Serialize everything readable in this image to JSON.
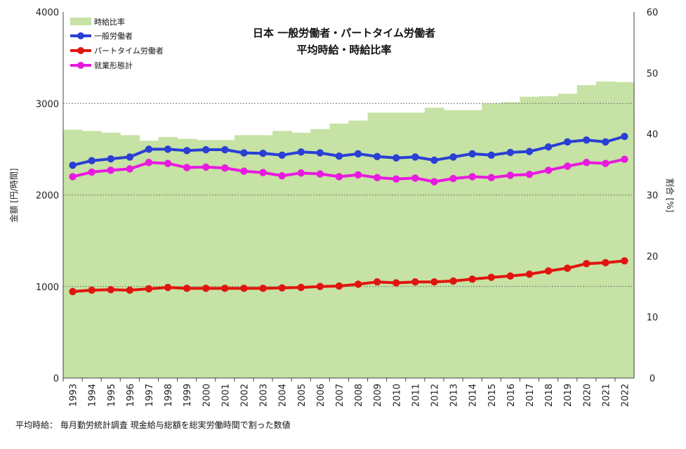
{
  "chart_data": {
    "type": "line",
    "title": "日本 一般労働者・パートタイム労働者",
    "subtitle": "平均時給・時給比率",
    "ylabel": "金額 [円/時間]",
    "y2label": "割合 [%]",
    "ylim": [
      0,
      4000
    ],
    "y2lim": [
      0,
      60
    ],
    "yticks": [
      "0",
      "1000",
      "2000",
      "3000",
      "4000"
    ],
    "y2ticks": [
      "0",
      "10",
      "20",
      "30",
      "40",
      "50",
      "60"
    ],
    "grid": "horizontal",
    "legend_position": "top-left",
    "categories": [
      "1993",
      "1994",
      "1995",
      "1996",
      "1997",
      "1998",
      "1999",
      "2000",
      "2001",
      "2002",
      "2003",
      "2004",
      "2005",
      "2006",
      "2007",
      "2008",
      "2009",
      "2010",
      "2011",
      "2012",
      "2013",
      "2014",
      "2015",
      "2016",
      "2017",
      "2018",
      "2019",
      "2020",
      "2021",
      "2022"
    ],
    "area": {
      "name": "時給比率",
      "axis": "right",
      "color": "#c6e2a4",
      "values": [
        40.7,
        40.5,
        40.2,
        39.8,
        38.9,
        39.5,
        39.2,
        39.0,
        39.0,
        39.8,
        39.8,
        40.5,
        40.2,
        40.8,
        41.7,
        42.2,
        43.5,
        43.5,
        43.5,
        44.3,
        43.9,
        43.9,
        45.0,
        45.2,
        46.1,
        46.2,
        46.6,
        48.0,
        48.6,
        48.5
      ]
    },
    "series": [
      {
        "name": "一般労働者",
        "axis": "left",
        "color": "#2a3fd4",
        "values": [
          2325,
          2375,
          2395,
          2415,
          2500,
          2500,
          2485,
          2495,
          2495,
          2460,
          2455,
          2435,
          2470,
          2460,
          2425,
          2450,
          2420,
          2405,
          2415,
          2380,
          2415,
          2450,
          2435,
          2465,
          2475,
          2525,
          2580,
          2600,
          2580,
          2640
        ]
      },
      {
        "name": "パートタイム労働者",
        "axis": "left",
        "color": "#e0150f",
        "values": [
          945,
          960,
          965,
          960,
          975,
          990,
          980,
          980,
          980,
          980,
          980,
          985,
          990,
          1000,
          1005,
          1025,
          1050,
          1040,
          1050,
          1050,
          1060,
          1080,
          1100,
          1115,
          1135,
          1170,
          1200,
          1250,
          1260,
          1280
        ]
      },
      {
        "name": "就業形態計",
        "axis": "left",
        "color": "#e81ae0",
        "values": [
          2200,
          2250,
          2270,
          2285,
          2355,
          2345,
          2300,
          2305,
          2295,
          2260,
          2245,
          2210,
          2240,
          2230,
          2200,
          2220,
          2190,
          2175,
          2185,
          2145,
          2180,
          2200,
          2190,
          2215,
          2225,
          2270,
          2315,
          2355,
          2345,
          2390
        ]
      }
    ]
  },
  "footnote": "平均時給：  毎月勤労統計調査  現金給与総額を総実労働時間で割った数値"
}
